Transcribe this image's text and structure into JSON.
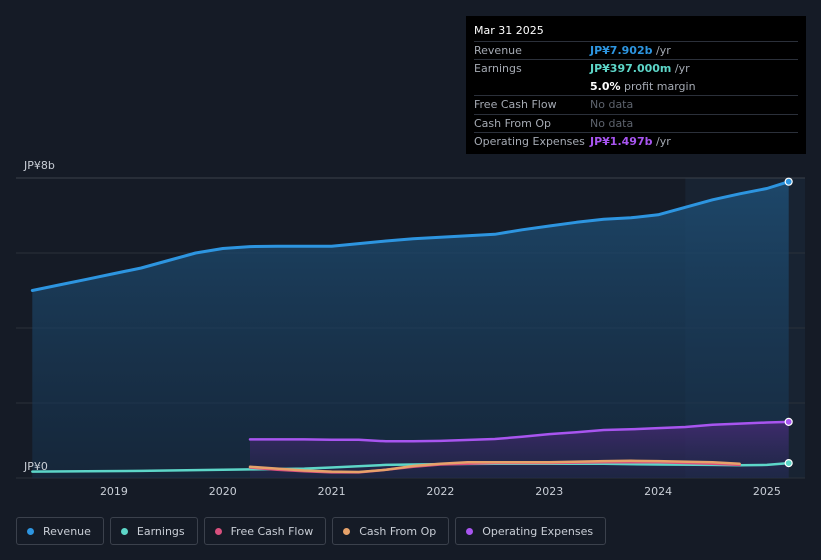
{
  "chart_data": {
    "type": "area",
    "title": "",
    "y_axis_labels": {
      "top": "JP¥8b",
      "bottom": "JP¥0"
    },
    "ylim": [
      0,
      8
    ],
    "xlim": [
      2018.1,
      2025.35
    ],
    "x_ticks": [
      {
        "year": 2019,
        "label": "2019"
      },
      {
        "year": 2020,
        "label": "2020"
      },
      {
        "year": 2021,
        "label": "2021"
      },
      {
        "year": 2022,
        "label": "2022"
      },
      {
        "year": 2023,
        "label": "2023"
      },
      {
        "year": 2024,
        "label": "2024"
      },
      {
        "year": 2025,
        "label": "2025"
      }
    ],
    "highlight_start": 2024.25,
    "series": [
      {
        "key": "revenue",
        "name": "Revenue",
        "color": "#2d95e0",
        "points": [
          [
            2018.25,
            5.0
          ],
          [
            2018.5,
            5.15
          ],
          [
            2018.75,
            5.3
          ],
          [
            2019.0,
            5.45
          ],
          [
            2019.25,
            5.6
          ],
          [
            2019.5,
            5.8
          ],
          [
            2019.75,
            6.0
          ],
          [
            2020.0,
            6.12
          ],
          [
            2020.25,
            6.17
          ],
          [
            2020.5,
            6.18
          ],
          [
            2020.75,
            6.18
          ],
          [
            2021.0,
            6.18
          ],
          [
            2021.25,
            6.25
          ],
          [
            2021.5,
            6.32
          ],
          [
            2021.75,
            6.38
          ],
          [
            2022.0,
            6.42
          ],
          [
            2022.25,
            6.46
          ],
          [
            2022.5,
            6.5
          ],
          [
            2022.75,
            6.62
          ],
          [
            2023.0,
            6.72
          ],
          [
            2023.25,
            6.82
          ],
          [
            2023.5,
            6.9
          ],
          [
            2023.75,
            6.94
          ],
          [
            2024.0,
            7.02
          ],
          [
            2024.25,
            7.22
          ],
          [
            2024.5,
            7.42
          ],
          [
            2024.75,
            7.58
          ],
          [
            2025.0,
            7.72
          ],
          [
            2025.2,
            7.902
          ]
        ]
      },
      {
        "key": "earnings",
        "name": "Earnings",
        "color": "#5dd6c8",
        "points": [
          [
            2018.25,
            0.17
          ],
          [
            2018.75,
            0.18
          ],
          [
            2019.25,
            0.19
          ],
          [
            2019.75,
            0.21
          ],
          [
            2020.25,
            0.23
          ],
          [
            2020.75,
            0.25
          ],
          [
            2021.0,
            0.28
          ],
          [
            2021.5,
            0.35
          ],
          [
            2022.0,
            0.37
          ],
          [
            2022.5,
            0.38
          ],
          [
            2023.0,
            0.38
          ],
          [
            2023.5,
            0.38
          ],
          [
            2024.0,
            0.36
          ],
          [
            2024.5,
            0.35
          ],
          [
            2024.75,
            0.34
          ],
          [
            2025.0,
            0.35
          ],
          [
            2025.2,
            0.397
          ]
        ]
      },
      {
        "key": "free_cash_flow",
        "name": "Free Cash Flow",
        "color": "#d9507e",
        "points": [
          [
            2020.25,
            0.28
          ],
          [
            2020.5,
            0.22
          ],
          [
            2020.75,
            0.18
          ],
          [
            2021.0,
            0.15
          ],
          [
            2021.25,
            0.15
          ],
          [
            2021.5,
            0.22
          ],
          [
            2021.75,
            0.3
          ],
          [
            2022.0,
            0.36
          ],
          [
            2022.5,
            0.4
          ],
          [
            2023.0,
            0.4
          ],
          [
            2023.5,
            0.42
          ],
          [
            2024.0,
            0.42
          ],
          [
            2024.5,
            0.38
          ],
          [
            2024.75,
            0.35
          ]
        ]
      },
      {
        "key": "cash_from_op",
        "name": "Cash From Op",
        "color": "#e6a26a",
        "points": [
          [
            2020.25,
            0.3
          ],
          [
            2020.5,
            0.25
          ],
          [
            2020.75,
            0.2
          ],
          [
            2021.0,
            0.17
          ],
          [
            2021.25,
            0.16
          ],
          [
            2021.5,
            0.22
          ],
          [
            2021.75,
            0.32
          ],
          [
            2022.0,
            0.38
          ],
          [
            2022.25,
            0.42
          ],
          [
            2022.5,
            0.42
          ],
          [
            2023.0,
            0.42
          ],
          [
            2023.5,
            0.45
          ],
          [
            2023.75,
            0.46
          ],
          [
            2024.0,
            0.45
          ],
          [
            2024.5,
            0.42
          ],
          [
            2024.75,
            0.38
          ]
        ]
      },
      {
        "key": "operating_expenses",
        "name": "Operating Expenses",
        "color": "#a855f0",
        "points": [
          [
            2020.25,
            1.03
          ],
          [
            2020.75,
            1.03
          ],
          [
            2021.0,
            1.02
          ],
          [
            2021.25,
            1.02
          ],
          [
            2021.5,
            0.98
          ],
          [
            2021.75,
            0.98
          ],
          [
            2022.0,
            0.99
          ],
          [
            2022.5,
            1.04
          ],
          [
            2022.75,
            1.1
          ],
          [
            2023.0,
            1.17
          ],
          [
            2023.25,
            1.22
          ],
          [
            2023.5,
            1.28
          ],
          [
            2023.75,
            1.3
          ],
          [
            2024.0,
            1.33
          ],
          [
            2024.25,
            1.36
          ],
          [
            2024.5,
            1.42
          ],
          [
            2024.75,
            1.45
          ],
          [
            2025.0,
            1.48
          ],
          [
            2025.2,
            1.497
          ]
        ]
      }
    ]
  },
  "tooltip": {
    "date": "Mar 31 2025",
    "rows": [
      {
        "label": "Revenue",
        "value": "JP¥7.902b",
        "unit": "/yr",
        "color": "#2d95e0"
      },
      {
        "label": "Earnings",
        "value": "JP¥397.000m",
        "unit": "/yr",
        "color": "#5dd6c8"
      },
      {
        "label": "",
        "value": "5.0%",
        "unit": "profit margin",
        "color": "#ffffff"
      },
      {
        "label": "Free Cash Flow",
        "value": "No data",
        "unit": "",
        "color": "#5d636d"
      },
      {
        "label": "Cash From Op",
        "value": "No data",
        "unit": "",
        "color": "#5d636d"
      },
      {
        "label": "Operating Expenses",
        "value": "JP¥1.497b",
        "unit": "/yr",
        "color": "#a855f0"
      }
    ]
  },
  "legend": [
    {
      "label": "Revenue",
      "color": "#2d95e0"
    },
    {
      "label": "Earnings",
      "color": "#5dd6c8"
    },
    {
      "label": "Free Cash Flow",
      "color": "#d9507e"
    },
    {
      "label": "Cash From Op",
      "color": "#e6a26a"
    },
    {
      "label": "Operating Expenses",
      "color": "#a855f0"
    }
  ]
}
